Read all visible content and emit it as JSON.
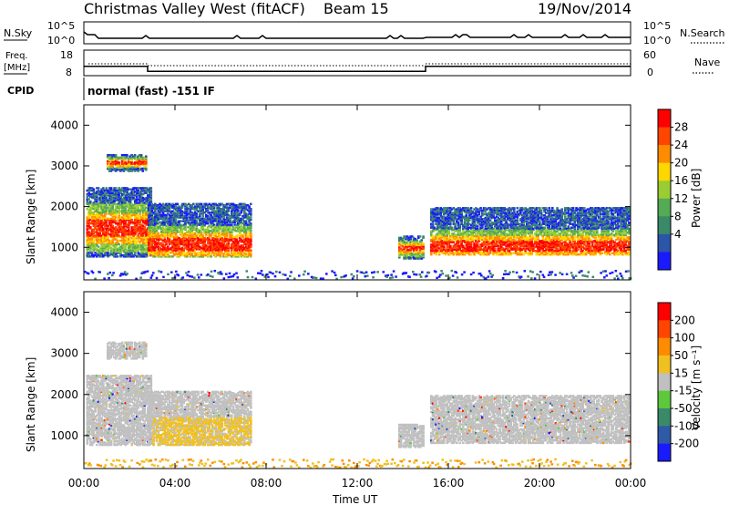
{
  "header": {
    "station": "Christmas Valley West (fitACF)",
    "beam": "Beam 15",
    "date": "19/Nov/2014"
  },
  "noise_panel": {
    "left_label": "N.Sky",
    "right_label": "N.Search",
    "left_ticks": [
      "10^5",
      "10^0"
    ],
    "right_ticks": [
      "10^5",
      "10^0"
    ]
  },
  "freq_panel": {
    "left_label_1": "Freq.",
    "left_label_2": "[MHz]",
    "right_label": "Nave",
    "left_ticks": [
      "18",
      "8"
    ],
    "right_ticks": [
      "60",
      "0"
    ]
  },
  "cpid": {
    "label": "CPID",
    "text": "normal (fast) -151 IF"
  },
  "x_axis": {
    "title": "Time UT",
    "ticks": [
      "00:00",
      "04:00",
      "08:00",
      "12:00",
      "16:00",
      "20:00",
      "00:00"
    ]
  },
  "power_panel": {
    "ylabel": "Slant Range [km]",
    "colorbar_label": "Power [dB]",
    "colorbar_ticks": [
      "28",
      "24",
      "20",
      "16",
      "12",
      "8",
      "4"
    ],
    "colors": [
      "#1a1aff",
      "#2a55a8",
      "#3a8a6a",
      "#55aa55",
      "#9acd32",
      "#ffd700",
      "#ff8c00",
      "#ff4500",
      "#ff0000"
    ]
  },
  "velocity_panel": {
    "ylabel": "Slant Range [km]",
    "colorbar_label": "Velocity [m s⁻¹]",
    "colorbar_ticks": [
      "200",
      "100",
      "50",
      "15",
      "-15",
      "-50",
      "-100",
      "-200"
    ],
    "colors": [
      "#1a1aff",
      "#2e5aa8",
      "#3a8a6a",
      "#5cc83a",
      "#c0c0c0",
      "#f0c020",
      "#ff8c00",
      "#ff4500",
      "#ff0000"
    ]
  },
  "chart_data": {
    "type": "heatmap",
    "x_range_hours": [
      0,
      24
    ],
    "y_range_km": [
      200,
      4500
    ],
    "y_ticks": [
      "4000",
      "3000",
      "2000",
      "1000"
    ],
    "y_tick_values": [
      4000,
      3000,
      2000,
      1000
    ],
    "freq_mhz_segments": [
      {
        "start": 0,
        "end": 2.8,
        "value": 12.7
      },
      {
        "start": 2.8,
        "end": 15.0,
        "value": 10.2
      },
      {
        "start": 15.0,
        "end": 24,
        "value": 12.7
      }
    ],
    "power_regions": [
      {
        "t0": 0.1,
        "t1": 2.9,
        "r0": 800,
        "r1": 2500,
        "core": 1500
      },
      {
        "t0": 2.8,
        "t1": 7.3,
        "r0": 800,
        "r1": 2100,
        "core": 1100
      },
      {
        "t0": 13.8,
        "t1": 14.9,
        "r0": 750,
        "r1": 1300,
        "core": 1000
      },
      {
        "t0": 15.2,
        "t1": 23.9,
        "r0": 850,
        "r1": 2000,
        "core": 1050
      },
      {
        "t0": 1.0,
        "t1": 2.7,
        "r0": 2900,
        "r1": 3300,
        "core": 3100
      }
    ]
  }
}
